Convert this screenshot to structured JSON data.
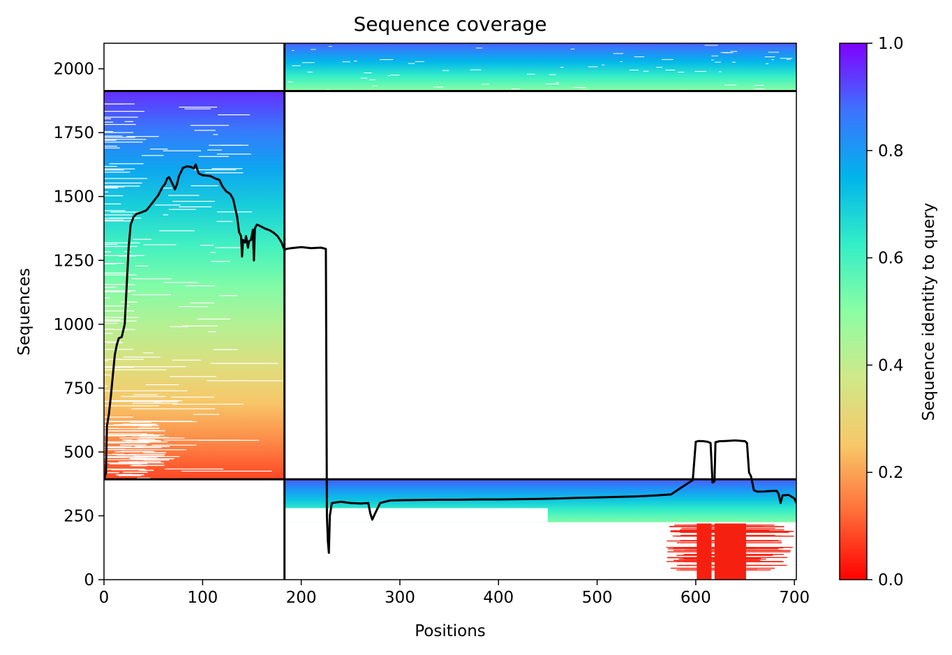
{
  "chart_data": {
    "type": "heatmap",
    "title": "Sequence coverage",
    "xlabel": "Positions",
    "ylabel": "Sequences",
    "xlim": [
      0,
      702
    ],
    "ylim": [
      0,
      2100
    ],
    "xticks": [
      0,
      100,
      200,
      300,
      400,
      500,
      600,
      700
    ],
    "yticks": [
      0,
      250,
      500,
      750,
      1000,
      1250,
      1500,
      1750,
      2000
    ],
    "grid": false,
    "colorbar": {
      "label": "Sequence identity to query",
      "range": [
        0.0,
        1.0
      ],
      "ticks": [
        0.0,
        0.2,
        0.4,
        0.6,
        0.8,
        1.0
      ],
      "colormap": "rainbow_r",
      "stops": [
        "#ff0000",
        "#ff6d38",
        "#f8c768",
        "#d0e888",
        "#8bfea4",
        "#33eec6",
        "#00b4ec",
        "#3d73fe",
        "#8000ff"
      ]
    },
    "blocks": [
      {
        "name": "block-1",
        "x": [
          0,
          183
        ],
        "y": [
          393,
          1913
        ],
        "identity_top": 0.95,
        "identity_bottom": 0.08
      },
      {
        "name": "block-2",
        "x": [
          183,
          702
        ],
        "y": [
          1913,
          2100
        ],
        "identity_top": 0.9,
        "identity_bottom": 0.5
      },
      {
        "name": "block-3",
        "x": [
          183,
          702
        ],
        "y": [
          0,
          393
        ],
        "identity_top": 0.9,
        "identity_bottom": 0.0
      }
    ],
    "block_boundaries": {
      "x": 183,
      "y": [
        393,
        1913
      ]
    },
    "coverage_line": {
      "name": "",
      "color": "#000000",
      "points": [
        [
          0,
          390
        ],
        [
          2,
          420
        ],
        [
          3,
          600
        ],
        [
          5,
          650
        ],
        [
          7,
          720
        ],
        [
          9,
          800
        ],
        [
          11,
          880
        ],
        [
          13,
          920
        ],
        [
          15,
          945
        ],
        [
          18,
          950
        ],
        [
          21,
          1000
        ],
        [
          23,
          1150
        ],
        [
          25,
          1300
        ],
        [
          27,
          1390
        ],
        [
          30,
          1420
        ],
        [
          33,
          1432
        ],
        [
          38,
          1438
        ],
        [
          43,
          1446
        ],
        [
          47,
          1465
        ],
        [
          50,
          1480
        ],
        [
          53,
          1495
        ],
        [
          55,
          1505
        ],
        [
          57,
          1520
        ],
        [
          59,
          1535
        ],
        [
          62,
          1550
        ],
        [
          64,
          1570
        ],
        [
          66,
          1576
        ],
        [
          68,
          1560
        ],
        [
          70,
          1545
        ],
        [
          72,
          1528
        ],
        [
          74,
          1548
        ],
        [
          76,
          1580
        ],
        [
          78,
          1595
        ],
        [
          80,
          1612
        ],
        [
          84,
          1618
        ],
        [
          88,
          1616
        ],
        [
          91,
          1610
        ],
        [
          93,
          1625
        ],
        [
          96,
          1590
        ],
        [
          100,
          1583
        ],
        [
          108,
          1580
        ],
        [
          113,
          1570
        ],
        [
          117,
          1565
        ],
        [
          120,
          1540
        ],
        [
          124,
          1520
        ],
        [
          128,
          1510
        ],
        [
          131,
          1490
        ],
        [
          133,
          1455
        ],
        [
          135,
          1420
        ],
        [
          137,
          1360
        ],
        [
          139,
          1345
        ],
        [
          140,
          1265
        ],
        [
          141,
          1330
        ],
        [
          143,
          1320
        ],
        [
          144,
          1345
        ],
        [
          146,
          1300
        ],
        [
          147,
          1325
        ],
        [
          149,
          1330
        ],
        [
          151,
          1370
        ],
        [
          152,
          1250
        ],
        [
          153,
          1375
        ],
        [
          155,
          1390
        ],
        [
          158,
          1385
        ],
        [
          163,
          1375
        ],
        [
          168,
          1368
        ],
        [
          172,
          1358
        ],
        [
          176,
          1345
        ],
        [
          180,
          1320
        ],
        [
          183,
          1290
        ],
        [
          185,
          1295
        ],
        [
          190,
          1298
        ],
        [
          200,
          1302
        ],
        [
          210,
          1298
        ],
        [
          220,
          1300
        ],
        [
          225,
          1295
        ],
        [
          226,
          250
        ],
        [
          227,
          150
        ],
        [
          228,
          105
        ],
        [
          229,
          250
        ],
        [
          231,
          300
        ],
        [
          240,
          305
        ],
        [
          250,
          300
        ],
        [
          260,
          298
        ],
        [
          268,
          300
        ],
        [
          270,
          260
        ],
        [
          272,
          235
        ],
        [
          275,
          260
        ],
        [
          280,
          300
        ],
        [
          290,
          310
        ],
        [
          300,
          311
        ],
        [
          320,
          312
        ],
        [
          340,
          313
        ],
        [
          360,
          313
        ],
        [
          380,
          314
        ],
        [
          400,
          314
        ],
        [
          420,
          315
        ],
        [
          440,
          316
        ],
        [
          460,
          318
        ],
        [
          480,
          320
        ],
        [
          500,
          322
        ],
        [
          520,
          324
        ],
        [
          540,
          326
        ],
        [
          560,
          330
        ],
        [
          575,
          334
        ],
        [
          585,
          360
        ],
        [
          595,
          385
        ],
        [
          597,
          390
        ],
        [
          600,
          540
        ],
        [
          603,
          543
        ],
        [
          608,
          542
        ],
        [
          612,
          540
        ],
        [
          615,
          535
        ],
        [
          617,
          380
        ],
        [
          619,
          385
        ],
        [
          620,
          538
        ],
        [
          624,
          542
        ],
        [
          630,
          543
        ],
        [
          640,
          545
        ],
        [
          650,
          542
        ],
        [
          652,
          535
        ],
        [
          654,
          420
        ],
        [
          656,
          405
        ],
        [
          659,
          350
        ],
        [
          662,
          345
        ],
        [
          668,
          345
        ],
        [
          676,
          347
        ],
        [
          682,
          348
        ],
        [
          684,
          335
        ],
        [
          686,
          300
        ],
        [
          688,
          330
        ],
        [
          694,
          332
        ],
        [
          700,
          318
        ],
        [
          702,
          300
        ]
      ]
    },
    "blank_columns_block_3": [
      [
        601,
        616
      ],
      [
        619,
        651
      ]
    ]
  }
}
